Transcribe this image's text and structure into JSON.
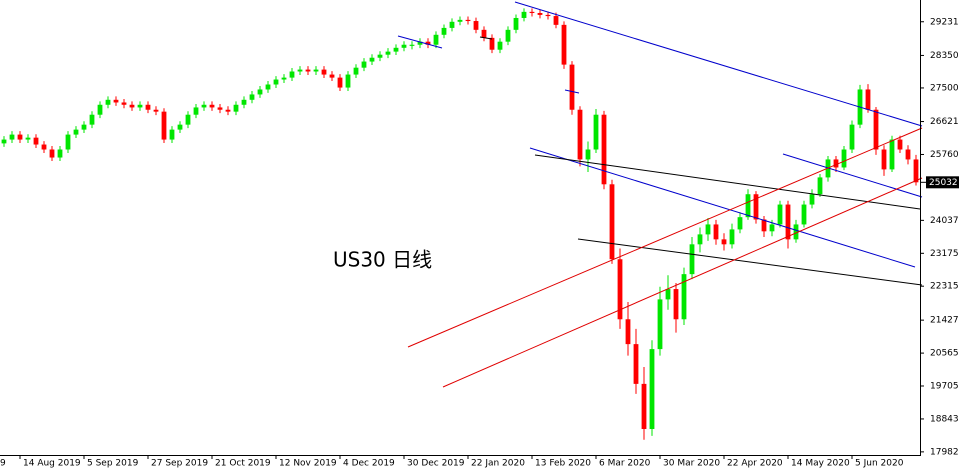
{
  "chart_data": {
    "type": "candlestick",
    "annotation": "US30 日线",
    "last_price": 25032,
    "up_color": "#00e600",
    "down_color": "#ff0000",
    "xlim": [
      0,
      115
    ],
    "xticks": [
      {
        "value": -5.5,
        "label": "9"
      },
      {
        "value": 2.5,
        "label": "14 Aug 2019"
      },
      {
        "value": 10.5,
        "label": "5 Sep 2019"
      },
      {
        "value": 18.5,
        "label": "27 Sep 2019"
      },
      {
        "value": 26.5,
        "label": "21 Oct 2019"
      },
      {
        "value": 34.5,
        "label": "12 Nov 2019"
      },
      {
        "value": 42.5,
        "label": "4 Dec 2019"
      },
      {
        "value": 50.5,
        "label": "30 Dec 2019"
      },
      {
        "value": 58.5,
        "label": "22 Jan 2020"
      },
      {
        "value": 66.5,
        "label": "13 Feb 2020"
      },
      {
        "value": 74.5,
        "label": "6 Mar 2020"
      },
      {
        "value": 82.5,
        "label": "30 Mar 2020"
      },
      {
        "value": 90.5,
        "label": "22 Apr 2020"
      },
      {
        "value": 98.5,
        "label": "14 May 2020"
      },
      {
        "value": 106.5,
        "label": "5 Jun 2020"
      }
    ],
    "ylim": [
      17900,
      29800
    ],
    "yticks": [
      {
        "value": 29231,
        "label": "29231."
      },
      {
        "value": 28350,
        "label": "28350."
      },
      {
        "value": 27500,
        "label": "27500."
      },
      {
        "value": 26621,
        "label": "26621."
      },
      {
        "value": 25760,
        "label": "25760."
      },
      {
        "value": 24037,
        "label": "24037."
      },
      {
        "value": 23175,
        "label": "23175."
      },
      {
        "value": 22315,
        "label": "22315."
      },
      {
        "value": 21427,
        "label": "21427."
      },
      {
        "value": 20565,
        "label": "20565."
      },
      {
        "value": 19705,
        "label": "19705."
      },
      {
        "value": 18843,
        "label": "18843."
      },
      {
        "value": 17982,
        "label": "17982."
      }
    ],
    "open": [
      26050,
      26150,
      26280,
      26150,
      26200,
      26020,
      25890,
      25680,
      25890,
      26280,
      26410,
      26540,
      26800,
      27060,
      27190,
      27120,
      27060,
      26990,
      27060,
      26930,
      26880,
      26150,
      26410,
      26540,
      26800,
      26990,
      27060,
      26990,
      26930,
      26880,
      27060,
      27190,
      27330,
      27460,
      27590,
      27720,
      27770,
      27930,
      27980,
      27930,
      27980,
      27850,
      27770,
      27510,
      27850,
      28030,
      28190,
      28290,
      28370,
      28450,
      28550,
      28600,
      28630,
      28710,
      28630,
      28890,
      29070,
      29230,
      29280,
      29250,
      29020,
      28810,
      28500,
      28710,
      29020,
      29330,
      29490,
      29460,
      29410,
      29380,
      29150,
      28110,
      26930,
      25630,
      25890,
      26800,
      24980,
      23020,
      21450,
      20800,
      19760,
      18580,
      20670,
      21970,
      22240,
      21450,
      22630,
      23410,
      23670,
      23930,
      23540,
      23410,
      23800,
      24120,
      24720,
      24060,
      23750,
      23930,
      24450,
      23540,
      23930,
      24450,
      24720,
      25160,
      25630,
      25420,
      25890,
      26540,
      27460,
      26930,
      25890,
      25370,
      26150,
      25890,
      25630
    ],
    "high": [
      26240,
      26370,
      26370,
      26290,
      26290,
      26110,
      25980,
      25980,
      26370,
      26500,
      26630,
      26890,
      27150,
      27280,
      27280,
      27210,
      27150,
      27150,
      27150,
      27020,
      26970,
      26500,
      26630,
      26890,
      27080,
      27150,
      27150,
      27080,
      27020,
      27150,
      27280,
      27420,
      27550,
      27680,
      27810,
      27860,
      28020,
      28070,
      28070,
      28070,
      28070,
      27940,
      27860,
      27940,
      28120,
      28280,
      28380,
      28460,
      28540,
      28640,
      28720,
      28720,
      28800,
      28800,
      28980,
      29160,
      29320,
      29370,
      29370,
      29340,
      29110,
      28900,
      28800,
      29110,
      29420,
      29580,
      29580,
      29550,
      29500,
      29470,
      29240,
      28200,
      27020,
      26100,
      26950,
      26900,
      25100,
      23300,
      21900,
      21200,
      20200,
      20900,
      22300,
      22600,
      22400,
      22800,
      23600,
      23850,
      24100,
      24050,
      23700,
      23950,
      24250,
      24850,
      24800,
      24150,
      24050,
      24550,
      24550,
      24050,
      24550,
      24850,
      25250,
      25720,
      25720,
      25980,
      26650,
      27580,
      27600,
      27000,
      26000,
      26250,
      26250,
      26000,
      25750
    ],
    "low": [
      25960,
      26060,
      26060,
      26060,
      25930,
      25800,
      25590,
      25590,
      25800,
      26190,
      26320,
      26450,
      26710,
      26970,
      27030,
      26970,
      26900,
      26900,
      26840,
      26790,
      26060,
      26060,
      26320,
      26450,
      26710,
      26900,
      26900,
      26840,
      26790,
      26790,
      26970,
      27100,
      27240,
      27370,
      27500,
      27630,
      27680,
      27840,
      27840,
      27840,
      27760,
      27680,
      27420,
      27420,
      27760,
      27940,
      28100,
      28200,
      28280,
      28360,
      28460,
      28510,
      28540,
      28540,
      28540,
      28800,
      28980,
      29140,
      29160,
      28930,
      28720,
      28410,
      28410,
      28620,
      28930,
      29240,
      29370,
      29320,
      29290,
      29060,
      28000,
      26800,
      25450,
      25300,
      25800,
      24850,
      22900,
      21200,
      20500,
      19500,
      18300,
      18400,
      20500,
      21700,
      21100,
      21300,
      22500,
      23200,
      23500,
      23400,
      23250,
      23300,
      23700,
      24050,
      23950,
      23600,
      23620,
      23850,
      23300,
      23450,
      23850,
      24350,
      24650,
      25050,
      25300,
      25350,
      25800,
      26450,
      26850,
      25750,
      25200,
      25300,
      25800,
      25500,
      24950
    ],
    "close": [
      26150,
      26280,
      26150,
      26200,
      26020,
      25890,
      25680,
      25890,
      26280,
      26410,
      26540,
      26800,
      27060,
      27190,
      27120,
      27060,
      26990,
      27060,
      26930,
      26880,
      26150,
      26410,
      26540,
      26800,
      26990,
      27060,
      26990,
      26930,
      26880,
      27060,
      27190,
      27330,
      27460,
      27590,
      27720,
      27770,
      27930,
      27980,
      27930,
      27980,
      27850,
      27770,
      27510,
      27850,
      28030,
      28190,
      28290,
      28370,
      28450,
      28550,
      28630,
      28630,
      28710,
      28630,
      28890,
      29070,
      29230,
      29280,
      29250,
      29020,
      28810,
      28500,
      28710,
      29020,
      29330,
      29490,
      29460,
      29410,
      29380,
      29150,
      28110,
      26930,
      25630,
      25890,
      26800,
      24980,
      23020,
      21450,
      20800,
      19760,
      18580,
      20670,
      21970,
      22240,
      21450,
      22630,
      23410,
      23670,
      23930,
      23540,
      23410,
      23800,
      24120,
      24720,
      24060,
      23750,
      23930,
      24450,
      23540,
      23930,
      24450,
      24720,
      25160,
      25630,
      25420,
      25890,
      26540,
      27460,
      26930,
      25890,
      25370,
      26150,
      25890,
      25630,
      25032
    ]
  }
}
